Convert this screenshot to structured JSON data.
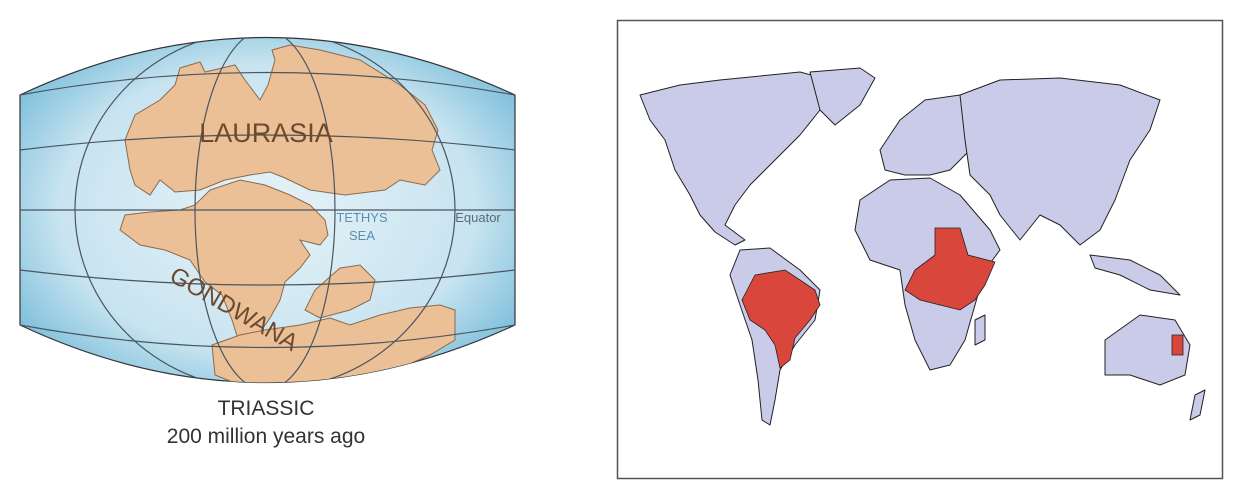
{
  "left_map": {
    "labels": {
      "laurasia": "LAURASIA",
      "gondwana": "GONDWANA",
      "tethys_line1": "TETHYS",
      "tethys_line2": "SEA",
      "equator": "Equator"
    },
    "caption": {
      "period": "TRIASSIC",
      "age": "200 million years ago"
    },
    "colors": {
      "ocean": "#cfe8f2",
      "land": "#ecc097",
      "grid": "#4a5560",
      "label": "#6b4a2e",
      "sea_label": "#5b8fb0"
    }
  },
  "right_map": {
    "highlighted_regions": [
      "Brazil",
      "East Africa",
      "Eastern Australia"
    ],
    "colors": {
      "land": "#c9cbe8",
      "highlight": "#d9473c",
      "outline": "#222"
    }
  }
}
